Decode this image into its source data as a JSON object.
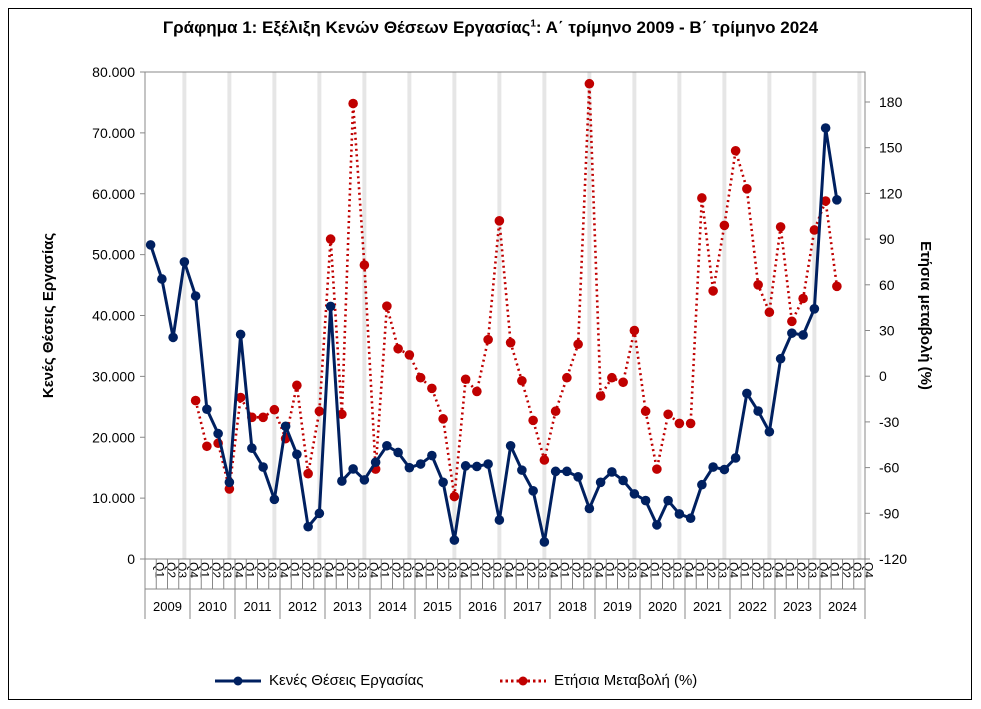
{
  "chart_data": {
    "type": "line",
    "title": "Γράφημα 1: Εξέλιξη Κενών Θέσεων Εργασίας",
    "title_sup": "1",
    "title_tail": ": Α΄ τρίμηνο 2009 - Β΄ τρίμηνο 2024",
    "ylabel": "Κενές Θέσεις Εργασίας",
    "y2label": "Ετήσια μεταβολή (%)",
    "ylim": [
      0,
      80000
    ],
    "y2lim": [
      -120,
      195
    ],
    "yticks": [
      "0",
      "10.000",
      "20.000",
      "30.000",
      "40.000",
      "50.000",
      "60.000",
      "70.000",
      "80.000"
    ],
    "y2ticks": [
      "-120",
      "-90",
      "-60",
      "-30",
      "0",
      "30",
      "60",
      "90",
      "120",
      "150",
      "180"
    ],
    "quarters": [
      "Q1",
      "Q2",
      "Q3",
      "Q4"
    ],
    "years": [
      "2009",
      "2010",
      "2011",
      "2012",
      "2013",
      "2014",
      "2015",
      "2016",
      "2017",
      "2018",
      "2019",
      "2020",
      "2021",
      "2022",
      "2023",
      "2024"
    ],
    "legend_placement": "bottom",
    "series": [
      {
        "name": "Κενές Θέσεις Εργασίας",
        "axis": "left",
        "color": "#002060",
        "style": "solid",
        "values": [
          51600,
          46000,
          36400,
          48800,
          43200,
          24600,
          20600,
          12600,
          36900,
          18200,
          15100,
          9800,
          21800,
          17200,
          5300,
          7500,
          41500,
          12800,
          14800,
          13000,
          15900,
          18600,
          17500,
          15000,
          15600,
          17000,
          12600,
          3100,
          15300,
          15200,
          15600,
          6400,
          18600,
          14600,
          11200,
          2800,
          14400,
          14400,
          13500,
          8300,
          12600,
          14300,
          12900,
          10700,
          9600,
          5600,
          9600,
          7400,
          6700,
          12200,
          15100,
          14700,
          16600,
          27200,
          24300,
          20900,
          32900,
          37100,
          36800,
          41100,
          70800,
          59000
        ]
      },
      {
        "name": "Ετήσια Μεταβολή (%)",
        "axis": "right",
        "color": "#C00000",
        "style": "dotted",
        "values": [
          null,
          null,
          null,
          null,
          -16,
          -46,
          -44,
          -74,
          -14,
          -27,
          -27,
          -22,
          -41,
          -6,
          -64,
          -23,
          90,
          -25,
          179,
          73,
          -61,
          46,
          18,
          14,
          -1,
          -8,
          -28,
          -79,
          -2,
          -10,
          24,
          102,
          22,
          -3,
          -29,
          -55,
          -23,
          -1,
          21,
          192,
          -13,
          -1,
          -4,
          30,
          -23,
          -61,
          -25,
          -31,
          -31,
          117,
          56,
          99,
          148,
          123,
          60,
          42,
          98,
          36,
          51,
          96,
          115,
          59
        ]
      }
    ]
  }
}
